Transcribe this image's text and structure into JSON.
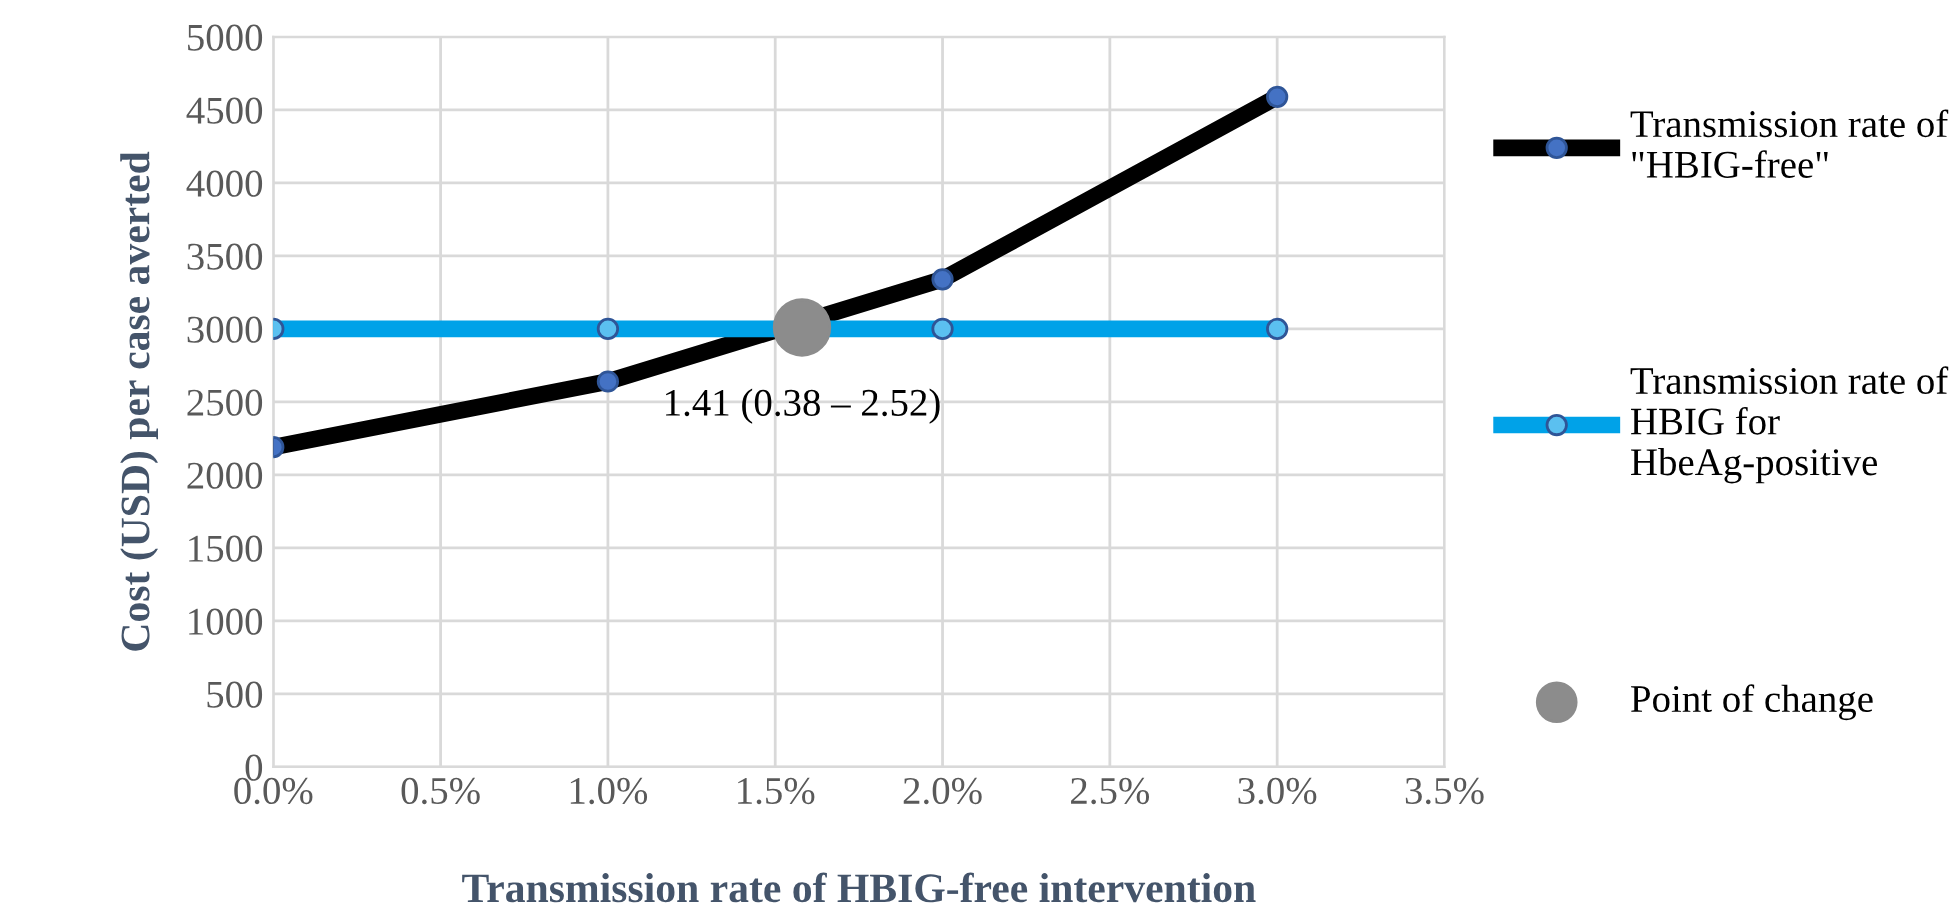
{
  "chart_data": {
    "type": "line",
    "xlabel": "Transmission rate of HBIG-free intervention",
    "ylabel": "Cost (USD) per case averted",
    "x": [
      0,
      1,
      2,
      3
    ],
    "series": [
      {
        "name": "Transmission rate of \"HBIG-free\"",
        "color": "#000000",
        "values": [
          2190,
          2640,
          3340,
          4590
        ]
      },
      {
        "name": "Transmission rate of HBIG for HbeAg-positive",
        "color": "#00a2e8",
        "values": [
          3000,
          3000,
          3000,
          3000
        ]
      },
      {
        "name": "Point of change",
        "type": "scatter",
        "color": "#8c8c8c",
        "x": [
          1.58
        ],
        "values": [
          3010
        ]
      }
    ],
    "annotations": [
      {
        "text": "1.41 (0.38 – 2.52)",
        "x": 1.58,
        "y": 3010
      }
    ],
    "xlim": [
      0,
      3.5
    ],
    "xticks": [
      {
        "value": 0,
        "label": "0.0%"
      },
      {
        "value": 0.5,
        "label": "0.5%"
      },
      {
        "value": 1,
        "label": "1.0%"
      },
      {
        "value": 1.5,
        "label": "1.5%"
      },
      {
        "value": 2,
        "label": "2.0%"
      },
      {
        "value": 2.5,
        "label": "2.5%"
      },
      {
        "value": 3,
        "label": "3.0%"
      },
      {
        "value": 3.5,
        "label": "3.5%"
      }
    ],
    "ylim": [
      0,
      5000
    ],
    "yticks": [
      0,
      500,
      1000,
      1500,
      2000,
      2500,
      3000,
      3500,
      4000,
      4500,
      5000
    ],
    "grid": true,
    "legend": "right",
    "marker": "circle"
  }
}
